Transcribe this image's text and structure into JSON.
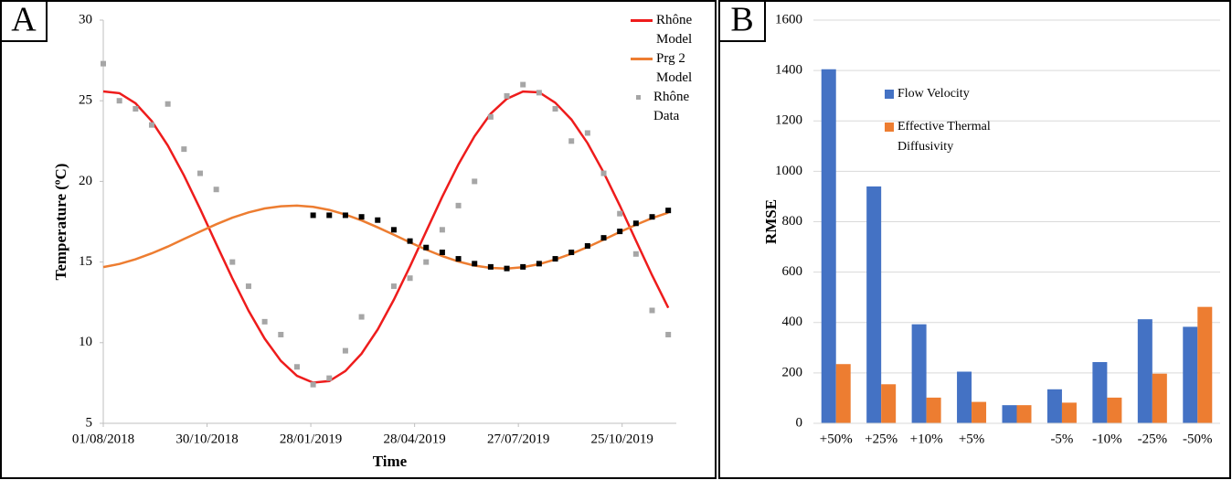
{
  "chart_data": [
    {
      "type": "line",
      "panel_label": "A",
      "y_label": "Temperature (ºC)",
      "x_label": "Time",
      "x": [
        "2018-08-01",
        "2018-08-15",
        "2018-08-29",
        "2018-09-12",
        "2018-09-26",
        "2018-10-10",
        "2018-10-24",
        "2018-11-07",
        "2018-11-21",
        "2018-12-05",
        "2018-12-19",
        "2019-01-02",
        "2019-01-16",
        "2019-01-30",
        "2019-02-13",
        "2019-02-27",
        "2019-03-13",
        "2019-03-27",
        "2019-04-10",
        "2019-04-24",
        "2019-05-08",
        "2019-05-22",
        "2019-06-05",
        "2019-06-19",
        "2019-07-03",
        "2019-07-17",
        "2019-07-31",
        "2019-08-14",
        "2019-08-28",
        "2019-09-11",
        "2019-09-25",
        "2019-10-09",
        "2019-10-23",
        "2019-11-06",
        "2019-11-20",
        "2019-12-04"
      ],
      "series": [
        {
          "name": "Rhône Model",
          "color": "#ee1c1c",
          "mode": "line",
          "values": [
            25.58,
            25.47,
            24.84,
            23.74,
            22.22,
            20.37,
            18.29,
            16.12,
            13.98,
            11.98,
            10.25,
            8.87,
            7.95,
            7.52,
            7.62,
            8.24,
            9.32,
            10.82,
            12.66,
            14.73,
            16.89,
            19.05,
            21.06,
            22.8,
            24.2,
            25.12,
            25.57,
            25.52,
            24.88,
            23.84,
            22.37,
            20.55,
            18.5,
            16.33,
            14.18,
            12.16
          ]
        },
        {
          "name": "Prg 2 Model",
          "color": "#ed7d31",
          "mode": "line",
          "values": [
            14.69,
            14.88,
            15.17,
            15.54,
            15.96,
            16.43,
            16.89,
            17.34,
            17.75,
            18.08,
            18.32,
            18.46,
            18.5,
            18.42,
            18.23,
            17.94,
            17.58,
            17.15,
            16.69,
            16.22,
            15.77,
            15.37,
            15.03,
            14.78,
            14.64,
            14.6,
            14.68,
            14.87,
            15.16,
            15.51,
            15.93,
            16.39,
            16.86,
            17.31,
            17.72,
            18.06
          ]
        },
        {
          "name": "Rhône Data",
          "color": "#a6a6a6",
          "mode": "markers",
          "values": [
            27.3,
            25.0,
            24.5,
            23.5,
            24.8,
            22.0,
            20.5,
            19.5,
            15.0,
            13.5,
            11.3,
            10.5,
            8.5,
            7.4,
            7.8,
            9.5,
            11.6,
            null,
            13.5,
            14.0,
            15.0,
            17.0,
            18.5,
            20.0,
            24.0,
            25.3,
            26.0,
            25.5,
            24.5,
            22.5,
            23.0,
            20.5,
            18.0,
            15.5,
            12.0,
            10.5
          ]
        },
        {
          "color": "#000000",
          "mode": "markers",
          "values": [
            null,
            null,
            null,
            null,
            null,
            null,
            null,
            null,
            null,
            null,
            null,
            null,
            null,
            17.9,
            17.9,
            17.9,
            17.8,
            17.6,
            17.0,
            16.3,
            15.9,
            15.6,
            15.2,
            14.9,
            14.7,
            14.6,
            14.7,
            14.9,
            15.2,
            15.6,
            16.0,
            16.5,
            16.9,
            17.4,
            17.8,
            18.2
          ]
        }
      ],
      "xlim": [
        "2018-08-01",
        "2019-12-11"
      ],
      "xticks": [
        {
          "value": "2018-08-01",
          "label": "01/08/2018"
        },
        {
          "value": "2018-10-30",
          "label": "30/10/2018"
        },
        {
          "value": "2019-01-28",
          "label": "28/01/2019"
        },
        {
          "value": "2019-04-28",
          "label": "28/04/2019"
        },
        {
          "value": "2019-07-27",
          "label": "27/07/2019"
        },
        {
          "value": "2019-10-25",
          "label": "25/10/2019"
        }
      ],
      "ylim": [
        5,
        30
      ],
      "yticks": [
        5,
        10,
        15,
        20,
        25,
        30
      ],
      "grid": false,
      "legend": "top-right"
    },
    {
      "type": "bar",
      "panel_label": "B",
      "y_label": "RMSE",
      "categories": [
        "+50%",
        "+25%",
        "+10%",
        "+5%",
        null,
        "-5%",
        "-10%",
        "-25%",
        "-50%"
      ],
      "series": [
        {
          "name": "Flow Velocity",
          "color": "#4472c4",
          "values": [
            1405,
            940,
            393,
            205,
            72,
            135,
            243,
            413,
            383
          ]
        },
        {
          "name": "Effective Thermal Diffusivity",
          "color": "#ed7d31",
          "values": [
            235,
            155,
            102,
            85,
            72,
            82,
            102,
            197,
            462
          ]
        }
      ],
      "ylim": [
        0,
        1600
      ],
      "yticks": [
        0,
        200,
        400,
        600,
        800,
        1000,
        1200,
        1400,
        1600
      ],
      "grid": true,
      "legend": "center"
    }
  ]
}
